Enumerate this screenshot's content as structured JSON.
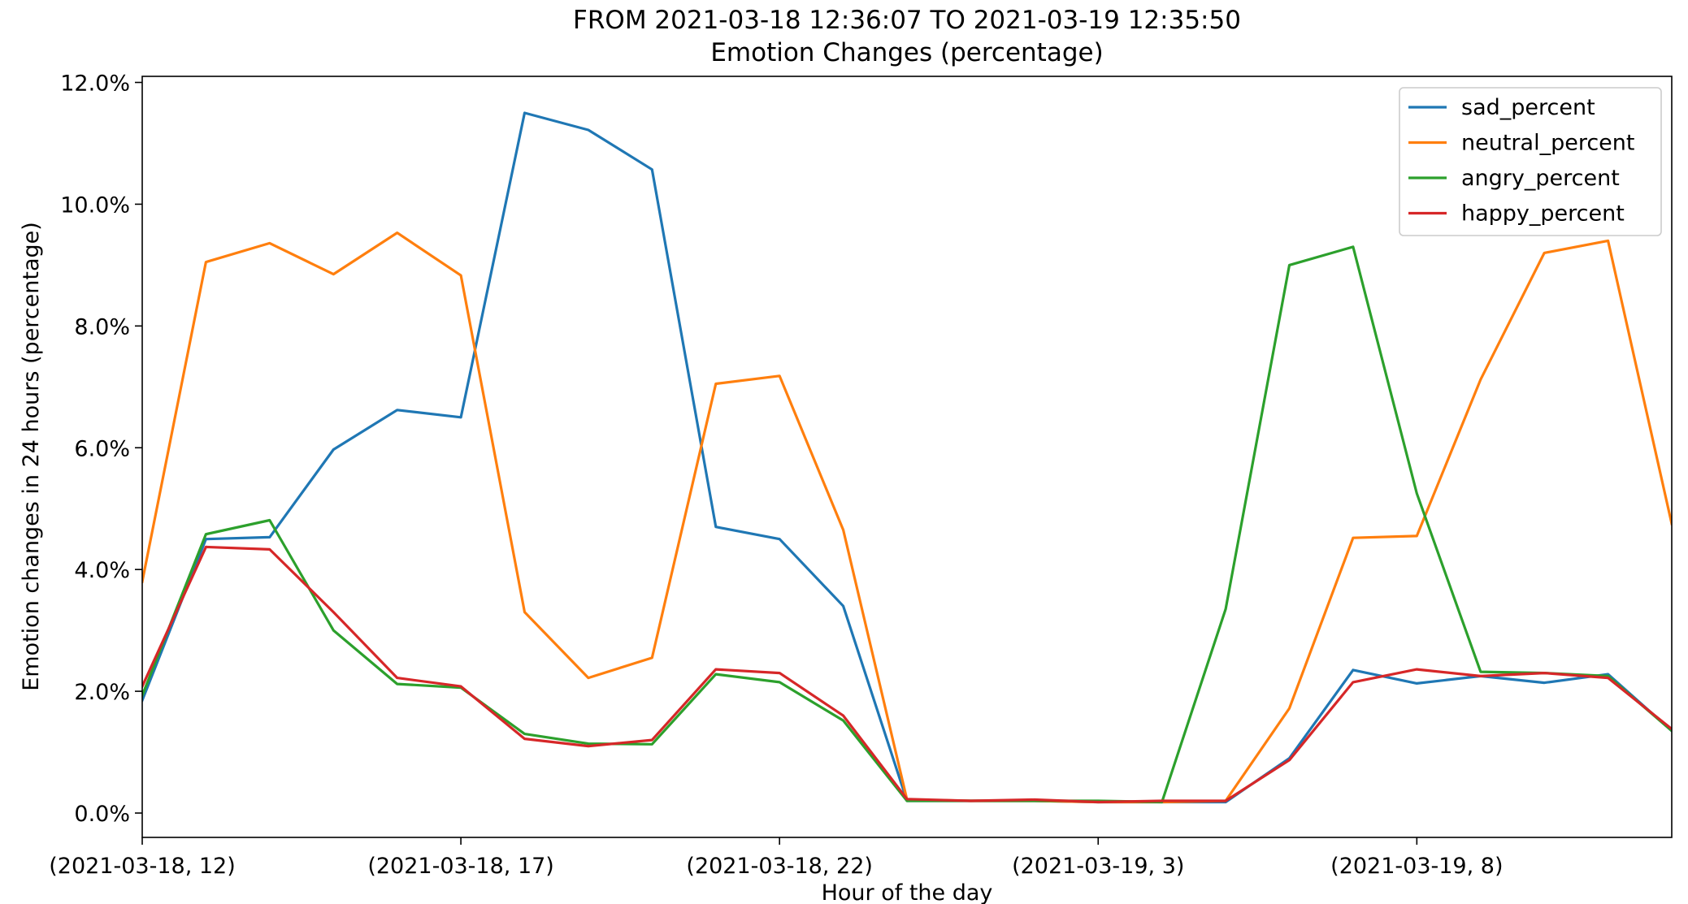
{
  "chart_data": {
    "type": "line",
    "title": "FROM 2021-03-18 12:36:07 TO 2021-03-19 12:35:50",
    "subtitle": "Emotion Changes (percentage)",
    "xlabel": "Hour of the day",
    "ylabel": "Emotion changes in 24 hours (percentage)",
    "xlim": [
      0,
      24
    ],
    "ylim": [
      -0.4,
      12.1
    ],
    "grid": false,
    "legend_position": "top-right",
    "x_ticks": [
      {
        "x": 0,
        "label": "(2021-03-18, 12)"
      },
      {
        "x": 5,
        "label": "(2021-03-18, 17)"
      },
      {
        "x": 10,
        "label": "(2021-03-18, 22)"
      },
      {
        "x": 15,
        "label": "(2021-03-19, 3)"
      },
      {
        "x": 20,
        "label": "(2021-03-19, 8)"
      }
    ],
    "y_ticks": [
      {
        "y": 0,
        "label": "0.0%"
      },
      {
        "y": 2,
        "label": "2.0%"
      },
      {
        "y": 4,
        "label": "4.0%"
      },
      {
        "y": 6,
        "label": "6.0%"
      },
      {
        "y": 8,
        "label": "8.0%"
      },
      {
        "y": 10,
        "label": "10.0%"
      },
      {
        "y": 12,
        "label": "12.0%"
      }
    ],
    "x": [
      0,
      1,
      2,
      3,
      4,
      5,
      6,
      7,
      8,
      9,
      10,
      11,
      12,
      13,
      14,
      15,
      16,
      17,
      18,
      19,
      20,
      21,
      22,
      23,
      24
    ],
    "series": [
      {
        "name": "sad_percent",
        "color": "#1f77b4",
        "values": [
          1.85,
          4.5,
          4.53,
          5.97,
          6.62,
          6.5,
          11.5,
          11.22,
          10.57,
          4.7,
          4.5,
          3.4,
          0.2,
          0.2,
          0.2,
          0.18,
          0.18,
          0.18,
          0.9,
          2.35,
          2.13,
          2.25,
          2.14,
          2.28,
          1.35
        ]
      },
      {
        "name": "neutral_percent",
        "color": "#ff7f0e",
        "values": [
          3.8,
          9.05,
          9.36,
          8.85,
          9.53,
          8.83,
          3.3,
          2.22,
          2.55,
          7.05,
          7.18,
          4.65,
          0.22,
          0.2,
          0.2,
          0.18,
          0.18,
          0.2,
          1.72,
          4.52,
          4.55,
          7.12,
          9.2,
          9.4,
          4.75
        ]
      },
      {
        "name": "angry_percent",
        "color": "#2ca02c",
        "values": [
          1.93,
          4.58,
          4.81,
          3.0,
          2.12,
          2.06,
          1.3,
          1.14,
          1.13,
          2.28,
          2.15,
          1.52,
          0.2,
          0.2,
          0.2,
          0.2,
          0.18,
          3.35,
          9.0,
          9.3,
          5.25,
          2.32,
          2.3,
          2.25,
          1.35
        ]
      },
      {
        "name": "happy_percent",
        "color": "#d62728",
        "values": [
          2.08,
          4.37,
          4.33,
          3.3,
          2.22,
          2.08,
          1.22,
          1.1,
          1.2,
          2.36,
          2.3,
          1.6,
          0.23,
          0.2,
          0.22,
          0.18,
          0.2,
          0.2,
          0.87,
          2.15,
          2.36,
          2.25,
          2.3,
          2.22,
          1.38
        ]
      }
    ]
  }
}
